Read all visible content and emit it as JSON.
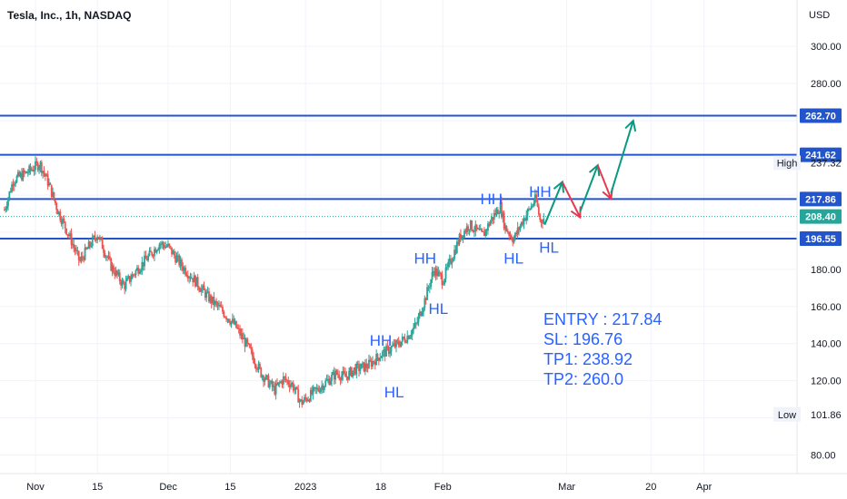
{
  "header": {
    "symbol_title": "Tesla, Inc., 1h, NASDAQ",
    "currency": "USD"
  },
  "colors": {
    "up": "#26a69a",
    "down": "#ef5350",
    "level_line": "#2255cc",
    "annotation_text": "#2962ff",
    "green_arrow": "#089981",
    "red_arrow": "#e53950",
    "current_price_line": "#26a69a"
  },
  "chart_data": {
    "type": "candlestick",
    "title": "Tesla, Inc., 1h, NASDAQ",
    "ylim": [
      70,
      325
    ],
    "y_ticks": [
      80,
      100,
      120,
      140,
      160,
      180,
      200,
      220,
      240,
      260,
      280,
      300
    ],
    "y_tick_labels": [
      "80.00",
      "",
      "120.00",
      "140.00",
      "160.00",
      "180.00",
      "",
      "",
      "",
      "",
      "280.00",
      "300.00"
    ],
    "x_tick_labels": [
      {
        "label": "Nov",
        "day": 0
      },
      {
        "label": "15",
        "day": 14
      },
      {
        "label": "Dec",
        "day": 30
      },
      {
        "label": "15",
        "day": 44
      },
      {
        "label": "2023",
        "day": 61
      },
      {
        "label": "18",
        "day": 78
      },
      {
        "label": "Feb",
        "day": 92
      },
      {
        "label": "Mar",
        "day": 120
      },
      {
        "label": "20",
        "day": 139
      },
      {
        "label": "Apr",
        "day": 151
      }
    ],
    "x_range_days": [
      -8,
      172
    ],
    "price_path": [
      [
        -7,
        212
      ],
      [
        -5,
        228
      ],
      [
        -2,
        232
      ],
      [
        1,
        237
      ],
      [
        3,
        226
      ],
      [
        5,
        212
      ],
      [
        8,
        196
      ],
      [
        10,
        184
      ],
      [
        12,
        192
      ],
      [
        14,
        199
      ],
      [
        17,
        182
      ],
      [
        20,
        171
      ],
      [
        23,
        180
      ],
      [
        26,
        188
      ],
      [
        28,
        194
      ],
      [
        30,
        192
      ],
      [
        33,
        182
      ],
      [
        36,
        174
      ],
      [
        39,
        165
      ],
      [
        42,
        158
      ],
      [
        45,
        150
      ],
      [
        48,
        138
      ],
      [
        51,
        124
      ],
      [
        54,
        115
      ],
      [
        56,
        121
      ],
      [
        58,
        118
      ],
      [
        60,
        108
      ],
      [
        62,
        112
      ],
      [
        65,
        118
      ],
      [
        68,
        124
      ],
      [
        70,
        122
      ],
      [
        72,
        126
      ],
      [
        75,
        128
      ],
      [
        78,
        134
      ],
      [
        80,
        137
      ],
      [
        82,
        140
      ],
      [
        84,
        144
      ],
      [
        86,
        150
      ],
      [
        88,
        164
      ],
      [
        90,
        180
      ],
      [
        92,
        174
      ],
      [
        94,
        186
      ],
      [
        96,
        198
      ],
      [
        98,
        204
      ],
      [
        101,
        198
      ],
      [
        103,
        207
      ],
      [
        105,
        214
      ],
      [
        106,
        203
      ],
      [
        108,
        196
      ],
      [
        110,
        206
      ],
      [
        112,
        214
      ],
      [
        113,
        218
      ],
      [
        114,
        206
      ],
      [
        115,
        208
      ]
    ],
    "horizontal_levels": [
      {
        "label": "262.70",
        "value": 262.7
      },
      {
        "label": "241.62",
        "value": 241.62
      },
      {
        "label": "217.86",
        "value": 217.86
      },
      {
        "label": "196.55",
        "value": 196.55
      }
    ],
    "current_price": {
      "label": "208.40",
      "value": 208.4
    },
    "markers": [
      {
        "label": "High",
        "price": "237.32",
        "value": 237.32
      },
      {
        "label": "Low",
        "price": "101.86",
        "value": 101.86
      }
    ],
    "swing_labels": [
      {
        "text": "HH",
        "day": 78,
        "value": 139
      },
      {
        "text": "HL",
        "day": 81,
        "value": 111
      },
      {
        "text": "HH",
        "day": 88,
        "value": 183
      },
      {
        "text": "HL",
        "day": 91,
        "value": 156
      },
      {
        "text": "HH",
        "day": 103,
        "value": 215
      },
      {
        "text": "HL",
        "day": 108,
        "value": 183
      },
      {
        "text": "HH",
        "day": 114,
        "value": 219
      },
      {
        "text": "HL",
        "day": 116,
        "value": 189
      }
    ],
    "projection_arrows": [
      {
        "color": "green",
        "from": [
          115,
          204
        ],
        "to": [
          119,
          227
        ]
      },
      {
        "color": "red",
        "from": [
          119,
          227
        ],
        "to": [
          123,
          208
        ]
      },
      {
        "color": "green",
        "from": [
          123,
          211
        ],
        "to": [
          127,
          236
        ]
      },
      {
        "color": "red",
        "from": [
          127,
          236
        ],
        "to": [
          130,
          218
        ]
      },
      {
        "color": "green",
        "from": [
          130,
          221
        ],
        "to": [
          135,
          260
        ]
      }
    ]
  },
  "trade_plan": {
    "entry": "ENTRY : 217.84",
    "sl": "SL: 196.76",
    "tp1": "TP1: 238.92",
    "tp2": "TP2: 260.0"
  }
}
